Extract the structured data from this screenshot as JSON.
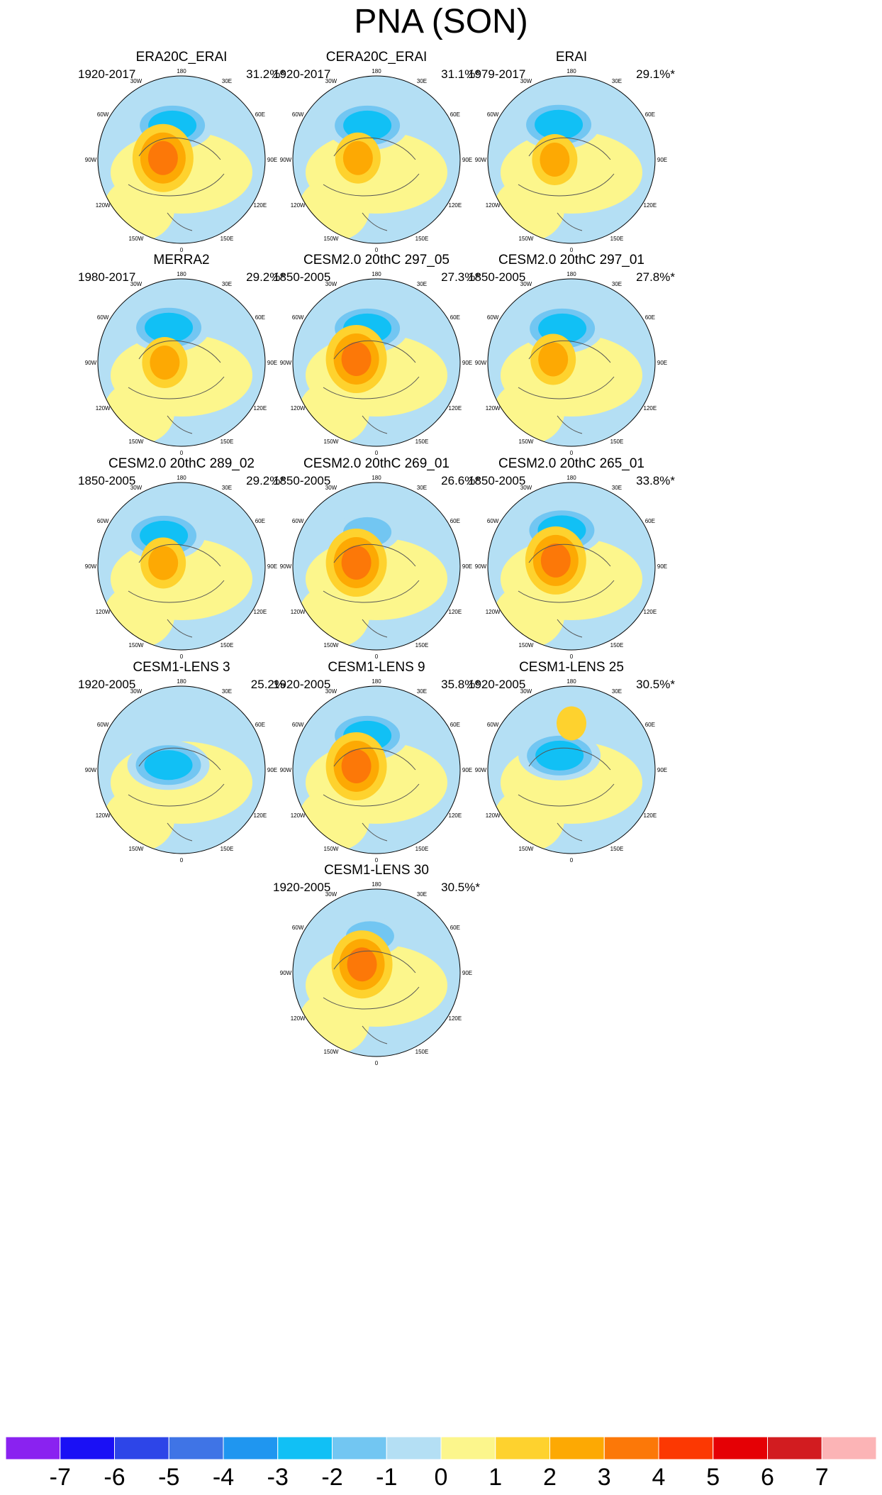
{
  "title": "PNA (SON)",
  "chart_data": {
    "type": "polar-contour-map-grid",
    "title": "PNA (SON)",
    "projection": "north-polar-stereographic",
    "longitude_labels": [
      "180",
      "150E",
      "120E",
      "90E",
      "60E",
      "30E",
      "0",
      "30W",
      "60W",
      "90W",
      "120W",
      "150W"
    ],
    "panels": [
      {
        "name": "ERA20C_ERAI",
        "period": "1920-2017",
        "variance": "31.2%*",
        "pattern": {
          "neg": -3,
          "pos": 3,
          "neg_lon": -165,
          "neg_lat": 52,
          "pos_lon": -95,
          "pos_lat": 70
        }
      },
      {
        "name": "CERA20C_ERAI",
        "period": "1920-2017",
        "variance": "31.1%*",
        "pattern": {
          "neg": -3,
          "pos": 2,
          "neg_lon": -165,
          "neg_lat": 52,
          "pos_lon": -95,
          "pos_lat": 70
        }
      },
      {
        "name": "ERAI",
        "period": "1979-2017",
        "variance": "29.1%*",
        "pattern": {
          "neg": -3,
          "pos": 2,
          "neg_lon": -160,
          "neg_lat": 50,
          "pos_lon": -90,
          "pos_lat": 72
        }
      },
      {
        "name": "MERRA2",
        "period": "1980-2017",
        "variance": "29.2%*",
        "pattern": {
          "neg": -3,
          "pos": 2,
          "neg_lon": -160,
          "neg_lat": 50,
          "pos_lon": -90,
          "pos_lat": 72
        }
      },
      {
        "name": "CESM2.0 20thC 297_05",
        "period": "1850-2005",
        "variance": "27.3%*",
        "pattern": {
          "neg": -3,
          "pos": 3,
          "neg_lon": -165,
          "neg_lat": 52,
          "pos_lon": -100,
          "pos_lat": 68
        }
      },
      {
        "name": "CESM2.0 20thC 297_01",
        "period": "1850-2005",
        "variance": "27.8%*",
        "pattern": {
          "neg": -3,
          "pos": 2,
          "neg_lon": -165,
          "neg_lat": 52,
          "pos_lon": -100,
          "pos_lat": 70
        }
      },
      {
        "name": "CESM2.0 20thC 289_02",
        "period": "1850-2005",
        "variance": "29.2%*",
        "pattern": {
          "neg": -3,
          "pos": 2,
          "neg_lon": -150,
          "neg_lat": 52,
          "pos_lon": -100,
          "pos_lat": 70
        }
      },
      {
        "name": "CESM2.0 20thC 269_01",
        "period": "1850-2005",
        "variance": "26.6%*",
        "pattern": {
          "neg": -2,
          "pos": 3,
          "neg_lon": -165,
          "neg_lat": 52,
          "pos_lon": -100,
          "pos_lat": 68
        }
      },
      {
        "name": "CESM2.0 20thC 265_01",
        "period": "1850-2005",
        "variance": "33.8%*",
        "pattern": {
          "neg": -3,
          "pos": 3,
          "neg_lon": -165,
          "neg_lat": 50,
          "pos_lon": -110,
          "pos_lat": 72
        }
      },
      {
        "name": "CESM1-LENS 3",
        "period": "1920-2005",
        "variance": "25.2%",
        "pattern": {
          "neg": -3,
          "pos": 0,
          "neg_lon": -110,
          "neg_lat": 75,
          "pos_lon": 30,
          "pos_lat": 40
        }
      },
      {
        "name": "CESM1-LENS 9",
        "period": "1920-2005",
        "variance": "35.8%*",
        "pattern": {
          "neg": -3,
          "pos": 3,
          "neg_lon": -165,
          "neg_lat": 52,
          "pos_lon": -100,
          "pos_lat": 68
        }
      },
      {
        "name": "CESM1-LENS 25",
        "period": "1920-2005",
        "variance": "30.5%*",
        "pattern": {
          "neg": -3,
          "pos": 1,
          "neg_lon": -140,
          "neg_lat": 70,
          "pos_lon": 180,
          "pos_lat": 40
        }
      },
      {
        "name": "CESM1-LENS 30",
        "period": "1920-2005",
        "variance": "30.5%*",
        "pattern": {
          "neg": -2,
          "pos": 3,
          "neg_lon": -170,
          "neg_lat": 50,
          "pos_lon": -120,
          "pos_lat": 72
        }
      }
    ],
    "colorbar": {
      "ticks": [
        "-7",
        "-6",
        "-5",
        "-4",
        "-3",
        "-2",
        "-1",
        "0",
        "1",
        "2",
        "3",
        "4",
        "5",
        "6",
        "7"
      ],
      "colors": [
        "#8a22f0",
        "#1a10f5",
        "#2d45e8",
        "#3f74e6",
        "#1f96f0",
        "#11c0f5",
        "#72c6f2",
        "#b4dff4",
        "#fcf68c",
        "#fed22e",
        "#fda903",
        "#fc7808",
        "#fc3802",
        "#e50005",
        "#d21c20",
        "#fcb4b6"
      ]
    }
  }
}
